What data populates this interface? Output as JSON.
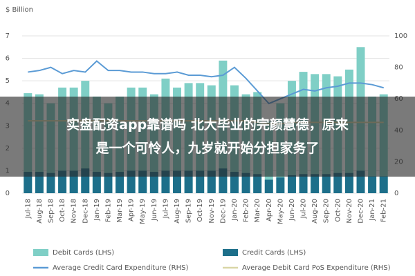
{
  "chart_data": {
    "type": "bar",
    "y_label": "$ Billion",
    "categories": [
      "Jul-18",
      "Aug-18",
      "Sep-18",
      "Oct-18",
      "Nov-18",
      "Dec-18",
      "Jan-19",
      "Feb-19",
      "Mar-19",
      "Apr-19",
      "May-19",
      "Jun-19",
      "Jul-19",
      "Aug-19",
      "Sep-19",
      "Oct-19",
      "Nov-19",
      "Dec-19",
      "Jan-20",
      "Feb-20",
      "Mar-20",
      "Apr-20",
      "May-20",
      "Jun-20",
      "Jul-20",
      "Aug-20",
      "Sep-20",
      "Oct-20",
      "Nov-20",
      "Dec-20",
      "Jan-21",
      "Feb-21"
    ],
    "series": [
      {
        "name": "Debit Cards (LHS)",
        "type": "bar",
        "color": "#7fcfc6",
        "values": [
          4.45,
          4.4,
          4.0,
          4.7,
          4.7,
          5.0,
          4.3,
          4.0,
          4.3,
          4.7,
          4.7,
          4.4,
          5.1,
          4.7,
          4.9,
          4.9,
          4.8,
          5.9,
          4.8,
          4.4,
          4.5,
          3.2,
          4.0,
          5.0,
          5.4,
          5.3,
          5.3,
          5.2,
          5.5,
          6.5,
          4.3,
          4.4
        ]
      },
      {
        "name": "Credit Cards (LHS)",
        "type": "bar",
        "color": "#1d6f8a",
        "values": [
          0.95,
          0.95,
          0.9,
          1.0,
          1.0,
          1.1,
          0.95,
          0.9,
          0.95,
          1.0,
          1.0,
          0.95,
          1.0,
          1.0,
          1.0,
          1.0,
          1.0,
          1.1,
          0.95,
          0.9,
          0.85,
          0.6,
          0.7,
          0.8,
          0.85,
          0.85,
          0.85,
          0.9,
          0.9,
          1.0,
          0.75,
          0.75
        ]
      },
      {
        "name": "Average Credit Card Expenditure (RHS)",
        "type": "line",
        "axis": "y2",
        "color": "#5b9bd5",
        "values": [
          77,
          78,
          80,
          76,
          78,
          77,
          84,
          78,
          78,
          77,
          77,
          76,
          76,
          77,
          75,
          75,
          74,
          75,
          80,
          73,
          65,
          57,
          60,
          63,
          66,
          65,
          67,
          68,
          70,
          70,
          69,
          67
        ]
      },
      {
        "name": "Average Debit Card PoS Expenditure (RHS)",
        "type": "line",
        "axis": "y2",
        "color": "#d9d6a6",
        "values": [
          46,
          46,
          46,
          46,
          46,
          46,
          46,
          46,
          46,
          46,
          46,
          46,
          46,
          46,
          46,
          46,
          46,
          46,
          46,
          46,
          45,
          44,
          44,
          45,
          45,
          45,
          45,
          45,
          45,
          45,
          45,
          45
        ]
      }
    ],
    "ylim": [
      0,
      7
    ],
    "yticks": [
      0,
      1,
      2,
      3,
      4,
      5,
      6,
      7
    ],
    "y2lim": [
      0,
      100
    ],
    "y2ticks": [
      0,
      20,
      40,
      60,
      80,
      100
    ],
    "grid": true
  },
  "overlay": {
    "lines": [
      "实盘配资app靠谱吗 北大毕业的完颜慧德，原来",
      "是一个可怜人，九岁就开始分担家务了"
    ]
  }
}
